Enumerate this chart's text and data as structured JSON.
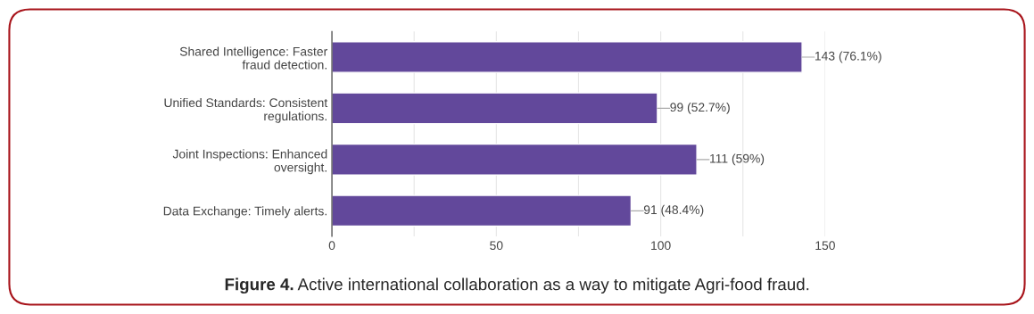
{
  "chart_data": {
    "type": "bar",
    "orientation": "horizontal",
    "categories": [
      "Shared Intelligence: Faster fraud detection.",
      "Unified Standards: Consistent regulations.",
      "Joint Inspections: Enhanced oversight.",
      "Data Exchange: Timely alerts."
    ],
    "values": [
      143,
      99,
      111,
      91
    ],
    "value_labels": [
      "143 (76.1%)",
      "99 (52.7%)",
      "111 (59%)",
      "91 (48.4%)"
    ],
    "color": "#62489b",
    "xlim": [
      0,
      150
    ],
    "xticks": [
      0,
      {
        "value": 25,
        "label": null
      },
      50,
      {
        "value": 75,
        "label": null
      },
      100,
      {
        "value": 125,
        "label": null
      },
      150
    ],
    "grid": "x",
    "legend": false,
    "annotations": [
      "Figure 4.",
      "Active international collaboration as a way to mitigate Agri-food fraud."
    ]
  }
}
